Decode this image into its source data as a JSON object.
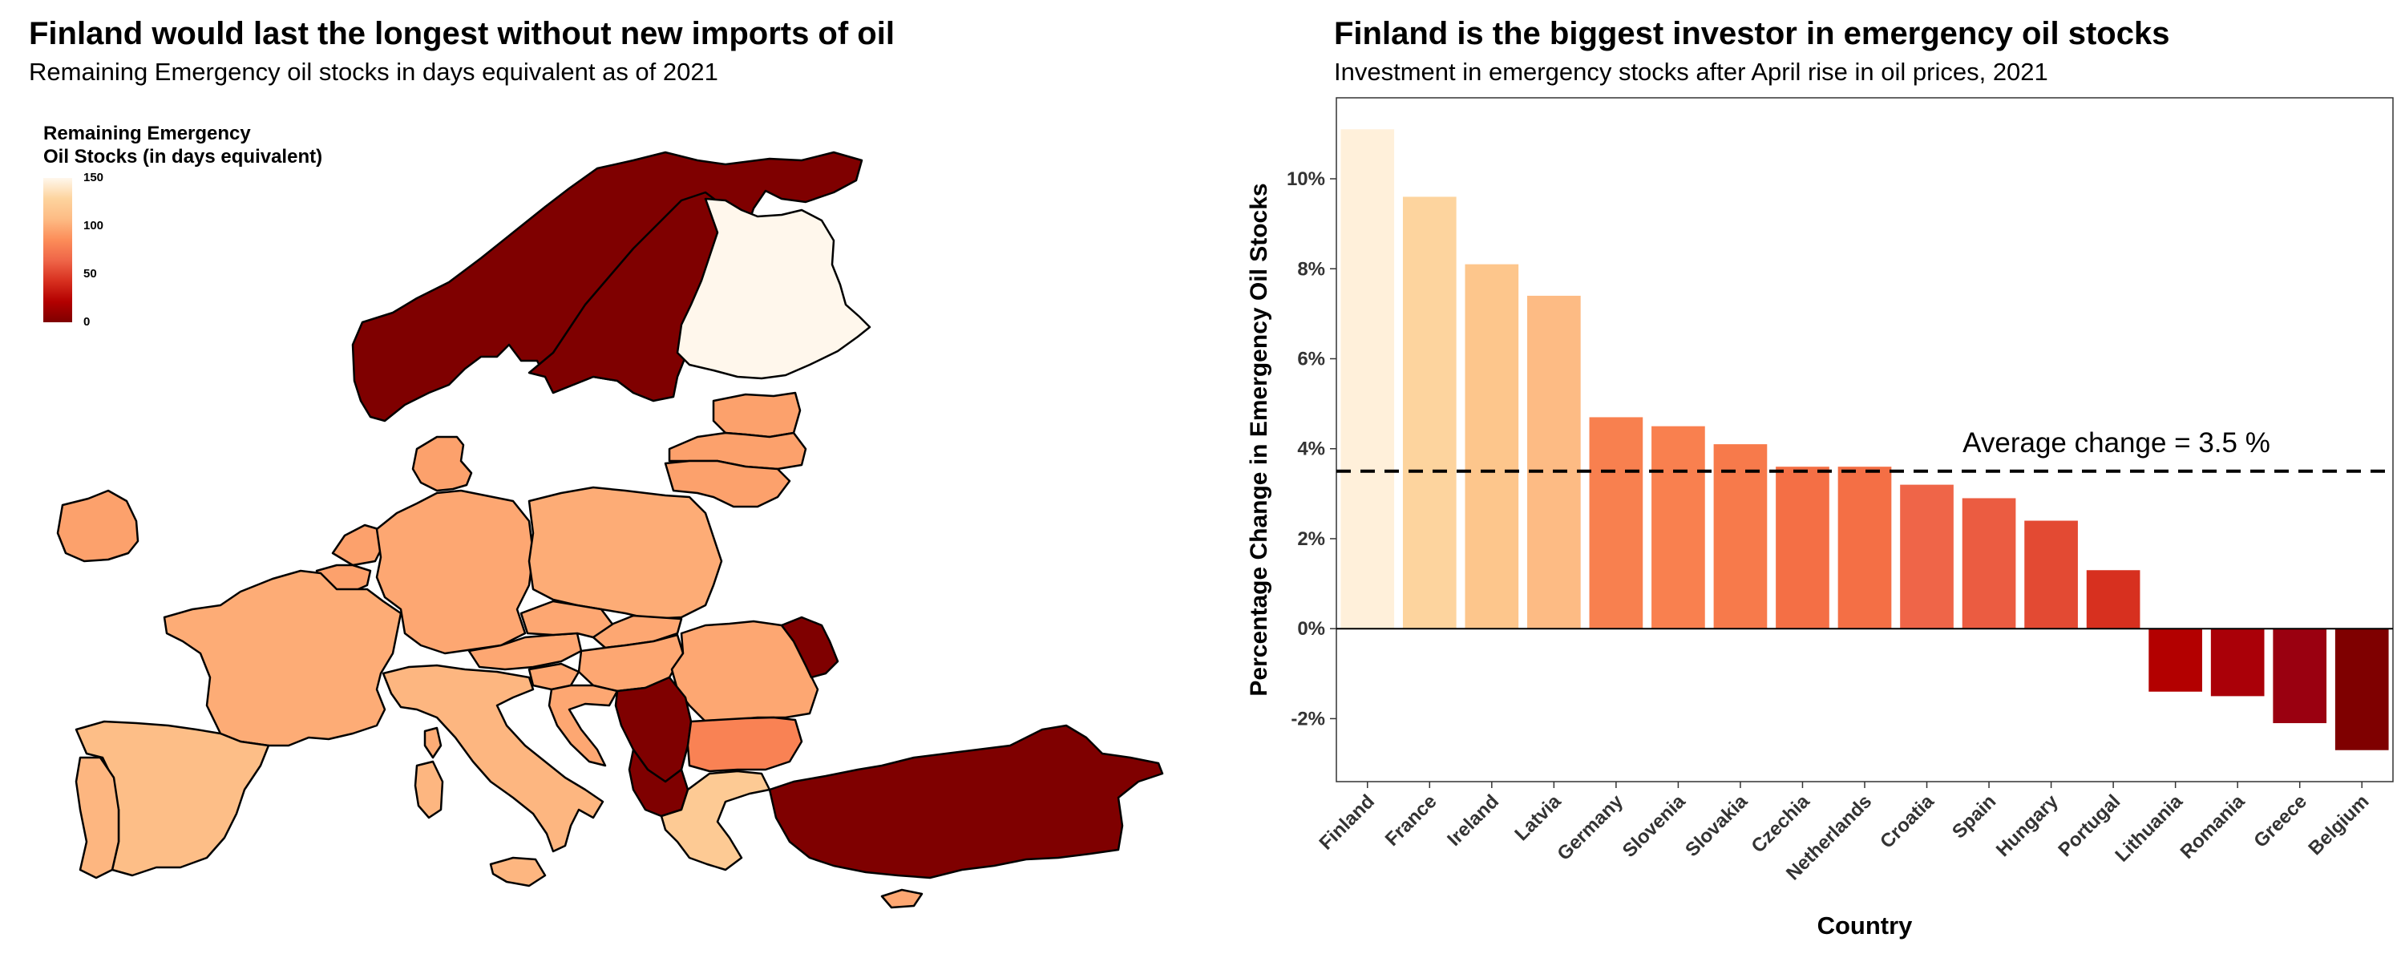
{
  "left_panel": {
    "title": "Finland would last the longest without new imports of oil",
    "subtitle": "Remaining Emergency oil stocks in days equivalent as of 2021",
    "legend": {
      "title_line1": "Remaining Emergency",
      "title_line2": "Oil Stocks (in days equivalent)",
      "ticks": [
        "150",
        "100",
        "50",
        "0"
      ],
      "tick_values": [
        150,
        100,
        50,
        0
      ],
      "range": [
        0,
        150
      ],
      "colors": [
        "#7f0000",
        "#b30000",
        "#d7301f",
        "#ef6548",
        "#fc8d59",
        "#fdbb84",
        "#fdd49e",
        "#fff7ec"
      ]
    }
  },
  "right_panel": {
    "title": "Finland is the biggest investor in emergency oil stocks",
    "subtitle": "Investment in emergency stocks after April rise in oil prices, 2021"
  },
  "chart_data": [
    {
      "type": "map",
      "title": "Finland would last the longest without new imports of oil",
      "subtitle": "Remaining Emergency oil stocks in days equivalent as of 2021",
      "legend_title": "Remaining Emergency Oil Stocks (in days equivalent)",
      "scale_range": [
        0,
        150
      ],
      "regions": [
        {
          "name": "Finland",
          "value": 150
        },
        {
          "name": "Norway",
          "value": 0
        },
        {
          "name": "Sweden",
          "value": 0
        },
        {
          "name": "Estonia",
          "value": 95
        },
        {
          "name": "Latvia",
          "value": 95
        },
        {
          "name": "Lithuania",
          "value": 95
        },
        {
          "name": "Denmark",
          "value": 95
        },
        {
          "name": "Ireland",
          "value": 95
        },
        {
          "name": "Netherlands",
          "value": 95
        },
        {
          "name": "Belgium",
          "value": 95
        },
        {
          "name": "Germany",
          "value": 98
        },
        {
          "name": "Poland",
          "value": 100
        },
        {
          "name": "France",
          "value": 100
        },
        {
          "name": "Spain",
          "value": 110
        },
        {
          "name": "Portugal",
          "value": 105
        },
        {
          "name": "Italy",
          "value": 105
        },
        {
          "name": "Austria",
          "value": 98
        },
        {
          "name": "Czechia",
          "value": 98
        },
        {
          "name": "Slovakia",
          "value": 98
        },
        {
          "name": "Hungary",
          "value": 98
        },
        {
          "name": "Romania",
          "value": 98
        },
        {
          "name": "Croatia",
          "value": 98
        },
        {
          "name": "Slovenia",
          "value": 98
        },
        {
          "name": "Bulgaria",
          "value": 80
        },
        {
          "name": "Greece",
          "value": 120
        },
        {
          "name": "Serbia",
          "value": 0
        },
        {
          "name": "Albania",
          "value": 0
        },
        {
          "name": "Moldova",
          "value": 0
        },
        {
          "name": "Turkey",
          "value": 0
        },
        {
          "name": "Cyprus",
          "value": 98
        }
      ]
    },
    {
      "type": "bar",
      "title": "Finland is the biggest investor in emergency oil stocks",
      "subtitle": "Investment in emergency stocks after April rise in oil prices, 2021",
      "xlabel": "Country",
      "ylabel": "Percentage Change in Emergency Oil Stocks",
      "ylim": [
        -3.4,
        11.8
      ],
      "yticks": [
        -2,
        0,
        2,
        4,
        6,
        8,
        10
      ],
      "ytick_labels": [
        "-2%",
        "0%",
        "2%",
        "4%",
        "6%",
        "8%",
        "10%"
      ],
      "categories": [
        "Finland",
        "France",
        "Ireland",
        "Latvia",
        "Germany",
        "Slovenia",
        "Slovakia",
        "Czechia",
        "Netherlands",
        "Croatia",
        "Spain",
        "Hungary",
        "Portugal",
        "Lithuania",
        "Romania",
        "Greece",
        "Belgium"
      ],
      "values": [
        11.1,
        9.6,
        8.1,
        7.4,
        4.7,
        4.5,
        4.1,
        3.6,
        3.6,
        3.2,
        2.9,
        2.4,
        1.3,
        -1.4,
        -1.5,
        -2.1,
        -2.7
      ],
      "bar_colors": [
        "#fff0da",
        "#fdd49e",
        "#fdc68c",
        "#fdbb84",
        "#f8804f",
        "#f9804f",
        "#f77a4b",
        "#f46f45",
        "#f46f45",
        "#ef6548",
        "#eb5c41",
        "#e34a33",
        "#d7301f",
        "#b30000",
        "#aa0008",
        "#9a0010",
        "#7f0000"
      ],
      "reference_line": {
        "value": 3.5,
        "style": "dashed",
        "label": "Average change = 3.5 %"
      },
      "grid": false
    }
  ]
}
